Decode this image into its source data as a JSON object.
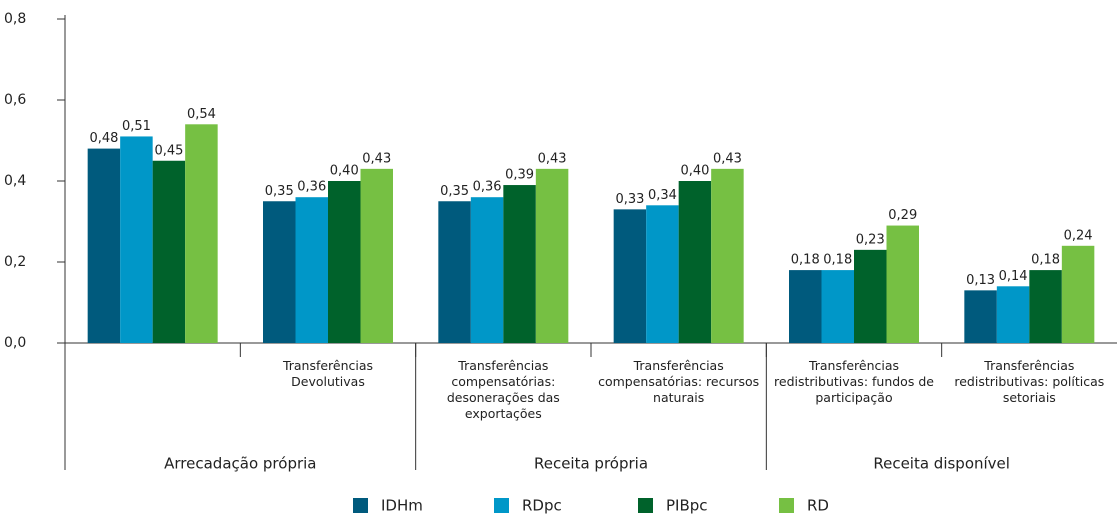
{
  "chart_data": {
    "type": "bar",
    "categories": [
      null,
      "Transferências Devolutivas",
      "Transferências compensatórias: desonerações das exportações",
      "Transferências compensatórias: recursos naturais",
      "Transferências redistributivas: fundos de participação",
      "Transferências redistributivas: políticas setoriais"
    ],
    "category_groups": [
      "Arrecadação própria",
      "Receita própria",
      "Receita disponível"
    ],
    "series": [
      {
        "name": "IDHm",
        "color": "#005a7d",
        "values": [
          0.48,
          0.35,
          0.35,
          0.33,
          0.18,
          0.13
        ],
        "value_labels": [
          "0,48",
          "0,35",
          "0,35",
          "0,33",
          "0,18",
          "0,13"
        ]
      },
      {
        "name": "RDpc",
        "color": "#0097c8",
        "values": [
          0.51,
          0.36,
          0.36,
          0.34,
          0.18,
          0.14
        ],
        "value_labels": [
          "0,51",
          "0,36",
          "0,36",
          "0,34",
          "0,18",
          "0,14"
        ]
      },
      {
        "name": "PIBpc",
        "color": "#00622b",
        "values": [
          0.45,
          0.4,
          0.39,
          0.4,
          0.23,
          0.18
        ],
        "value_labels": [
          "0,45",
          "0,40",
          "0,39",
          "0,40",
          "0,23",
          "0,18"
        ]
      },
      {
        "name": "RD",
        "color": "#76c043",
        "values": [
          0.54,
          0.43,
          0.43,
          0.43,
          0.29,
          0.24
        ],
        "value_labels": [
          "0,54",
          "0,43",
          "0,43",
          "0,43",
          "0,29",
          "0,24"
        ]
      }
    ],
    "ylim": [
      0,
      0.8
    ],
    "yticks": [
      {
        "value": 0,
        "label": "0,0"
      },
      {
        "value": 0.2,
        "label": "0,2"
      },
      {
        "value": 0.4,
        "label": "0,4"
      },
      {
        "value": 0.6,
        "label": "0,6"
      },
      {
        "value": 0.8,
        "label": "0,8"
      }
    ],
    "legend": "bottom"
  }
}
